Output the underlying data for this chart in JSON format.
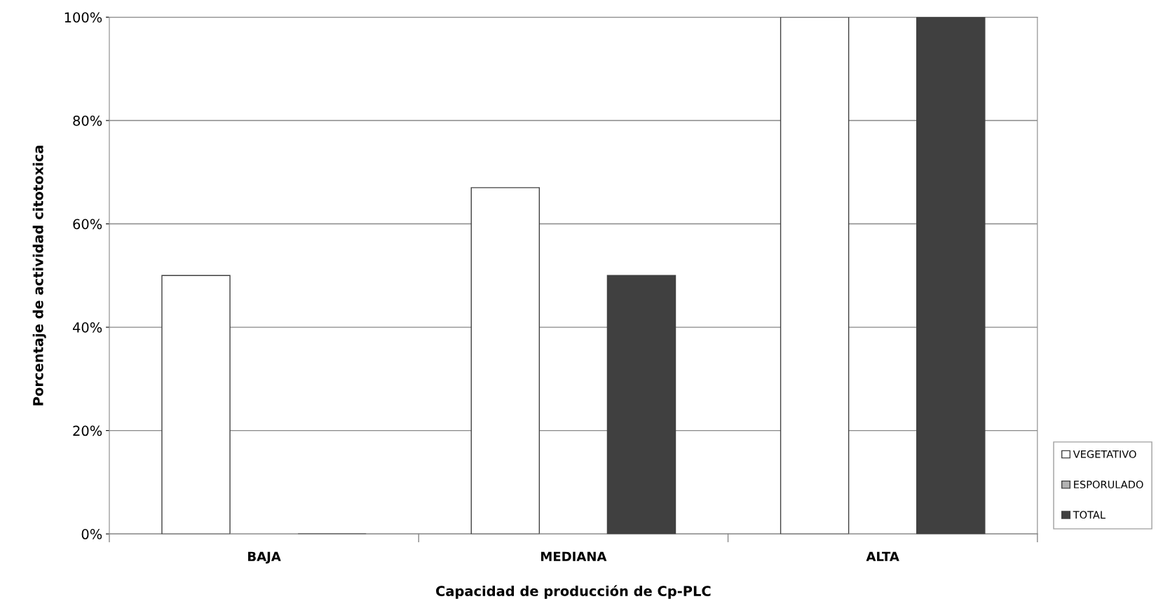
{
  "chart_data": {
    "type": "bar",
    "xlabel": "Capacidad de producción de Cp-PLC",
    "ylabel": "Porcentaje de actividad citotoxica",
    "categories": [
      "BAJA",
      "MEDIANA",
      "ALTA"
    ],
    "series": [
      {
        "name": "VEGETATIVO",
        "color": "#ffffff",
        "values": [
          50,
          67,
          100
        ]
      },
      {
        "name": "ESPORULADO",
        "color": "#b3b3b3",
        "values": [
          0,
          0,
          0
        ]
      },
      {
        "name": "TOTAL",
        "color": "#404040",
        "values": [
          0,
          50,
          100
        ]
      }
    ],
    "ylim": [
      0,
      100
    ],
    "yticks": [
      {
        "value": 0,
        "label": "0%"
      },
      {
        "value": 20,
        "label": "20%"
      },
      {
        "value": 40,
        "label": "40%"
      },
      {
        "value": 60,
        "label": "60%"
      },
      {
        "value": 80,
        "label": "80%"
      },
      {
        "value": 100,
        "label": "100%"
      }
    ],
    "grid": "y",
    "legend": "right"
  }
}
